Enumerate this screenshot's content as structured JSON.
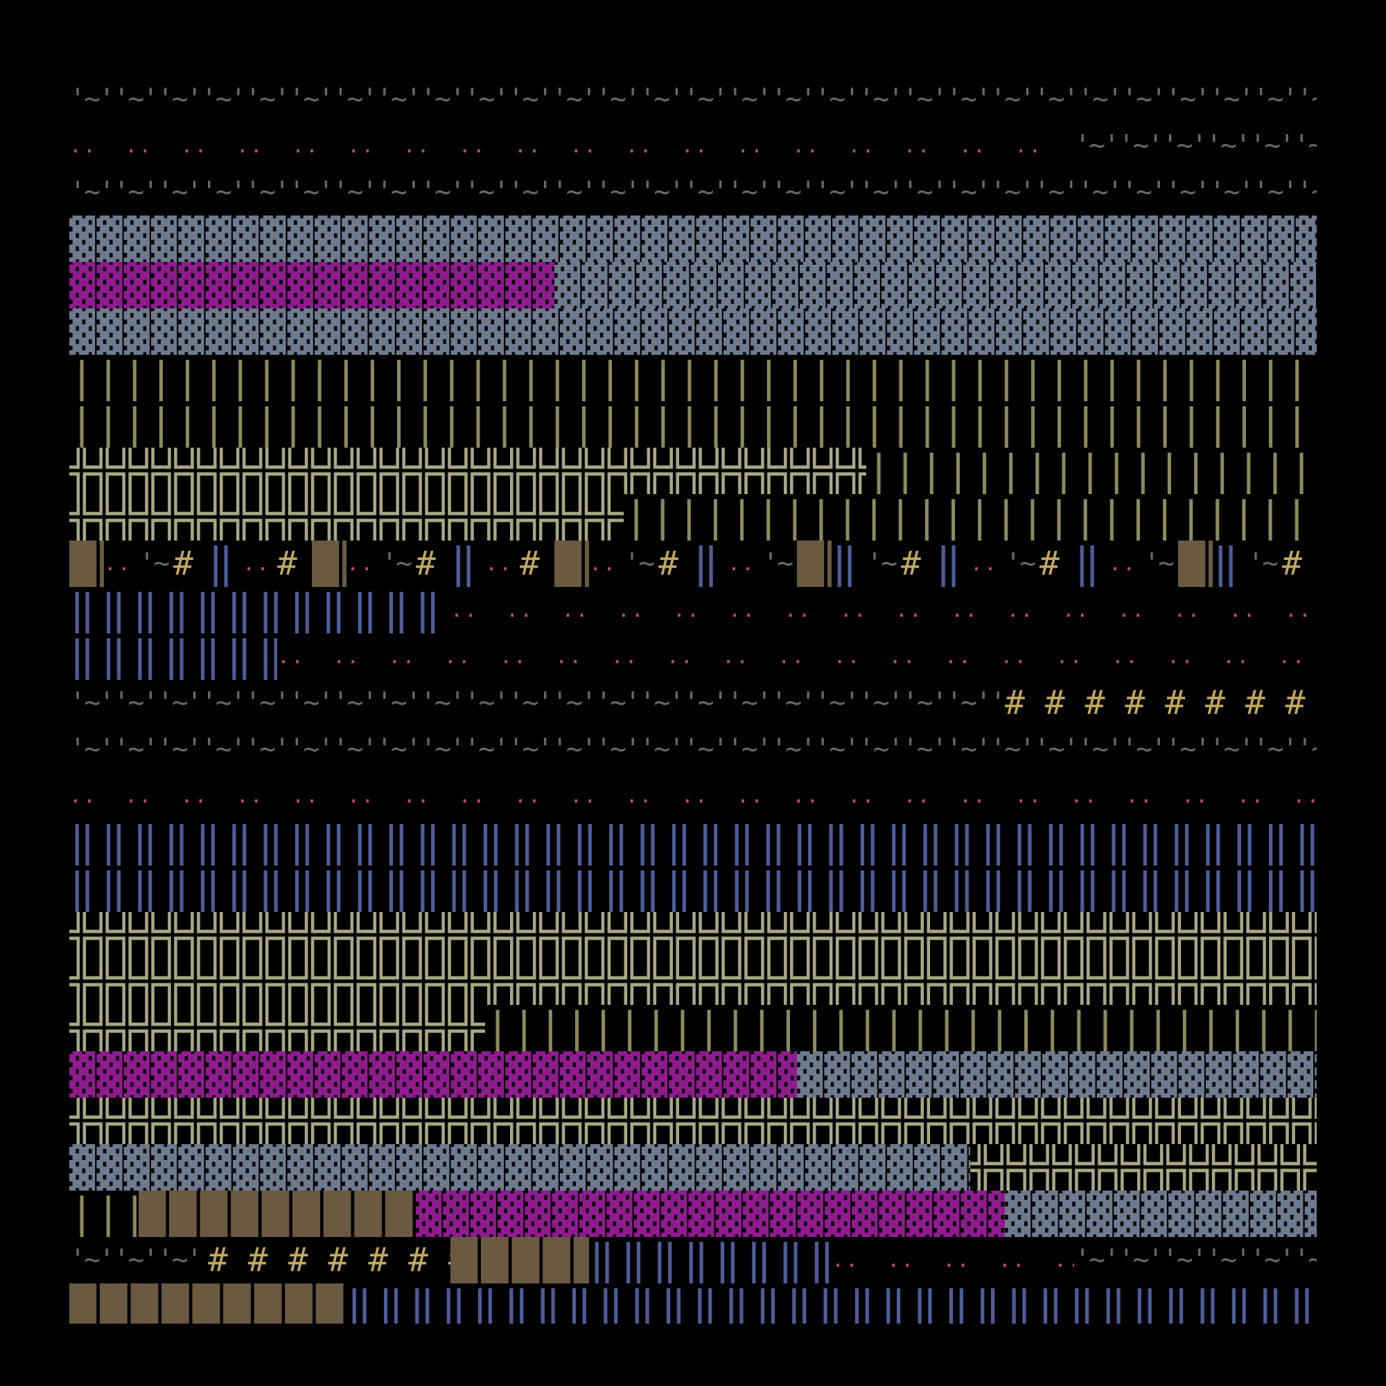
{
  "background": "#000000",
  "glyph_styles": {
    "wave": {
      "char": "'~'",
      "color": "#5f6b6b"
    },
    "dots": {
      "char": "..",
      "color": "#c2457f"
    },
    "dense": {
      "char": "▓",
      "color": "#6e7a8e"
    },
    "pink": {
      "char": "▓",
      "color": "#8f1b8f"
    },
    "bars": {
      "char": "|||",
      "color": "#8c8a5c"
    },
    "cross": {
      "char": "╬",
      "color": "#a7a784"
    },
    "block": {
      "char": "█",
      "color": "#6a5a42"
    },
    "hash": {
      "char": "#",
      "color": "#c2a85e"
    },
    "dbar": {
      "char": "‖",
      "color": "#4e5c9a"
    }
  },
  "rows": [
    {
      "segments": [
        {
          "style": "wave",
          "units": 36
        }
      ]
    },
    {
      "segments": [
        {
          "style": "dots",
          "units": 29
        },
        {
          "style": "wave",
          "units": 7
        }
      ]
    },
    {
      "segments": [
        {
          "style": "wave",
          "units": 36
        }
      ]
    },
    {
      "segments": [
        {
          "style": "dense",
          "units": 36
        }
      ]
    },
    {
      "segments": [
        {
          "style": "pink",
          "units": 14
        },
        {
          "style": "dense",
          "units": 22
        }
      ]
    },
    {
      "segments": [
        {
          "style": "dense",
          "units": 36
        }
      ]
    },
    {
      "segments": [
        {
          "style": "bars",
          "units": 36
        }
      ]
    },
    {
      "segments": [
        {
          "style": "bars",
          "units": 36
        }
      ]
    },
    {
      "segments": [
        {
          "style": "cross",
          "units": 23
        },
        {
          "style": "bars",
          "units": 13
        }
      ]
    },
    {
      "segments": [
        {
          "style": "cross",
          "units": 16
        },
        {
          "style": "bars",
          "units": 20
        }
      ]
    },
    {
      "segments": [
        {
          "style": "block",
          "units": 1
        },
        {
          "style": "dots",
          "units": 1
        },
        {
          "style": "wave",
          "units": 1
        },
        {
          "style": "hash",
          "units": 1
        },
        {
          "style": "dbar",
          "units": 1
        },
        {
          "style": "dots",
          "units": 1
        },
        {
          "style": "hash",
          "units": 1
        },
        {
          "style": "block",
          "units": 1
        },
        {
          "style": "dots",
          "units": 1
        },
        {
          "style": "wave",
          "units": 1
        },
        {
          "style": "hash",
          "units": 1
        },
        {
          "style": "dbar",
          "units": 1
        },
        {
          "style": "dots",
          "units": 1
        },
        {
          "style": "hash",
          "units": 1
        },
        {
          "style": "block",
          "units": 1
        },
        {
          "style": "dots",
          "units": 1
        },
        {
          "style": "wave",
          "units": 1
        },
        {
          "style": "hash",
          "units": 1
        },
        {
          "style": "dbar",
          "units": 1
        },
        {
          "style": "dots",
          "units": 1
        },
        {
          "style": "wave",
          "units": 1
        },
        {
          "style": "block",
          "units": 1
        },
        {
          "style": "dbar",
          "units": 1
        },
        {
          "style": "wave",
          "units": 1
        },
        {
          "style": "hash",
          "units": 1
        },
        {
          "style": "dbar",
          "units": 1
        },
        {
          "style": "dots",
          "units": 1
        },
        {
          "style": "wave",
          "units": 1
        },
        {
          "style": "hash",
          "units": 1
        },
        {
          "style": "dbar",
          "units": 1
        },
        {
          "style": "dots",
          "units": 1
        },
        {
          "style": "wave",
          "units": 1
        },
        {
          "style": "block",
          "units": 1
        },
        {
          "style": "dbar",
          "units": 1
        },
        {
          "style": "wave",
          "units": 1
        },
        {
          "style": "hash",
          "units": 1
        }
      ]
    },
    {
      "segments": [
        {
          "style": "dbar",
          "units": 11
        },
        {
          "style": "dots",
          "units": 25
        }
      ]
    },
    {
      "segments": [
        {
          "style": "dbar",
          "units": 6
        },
        {
          "style": "dots",
          "units": 30
        }
      ]
    },
    {
      "segments": [
        {
          "style": "wave",
          "units": 27
        },
        {
          "style": "hash",
          "units": 9
        }
      ]
    },
    {
      "segments": [
        {
          "style": "wave",
          "units": 36
        }
      ]
    },
    {
      "segments": [
        {
          "style": "dots",
          "units": 36
        }
      ]
    },
    {
      "segments": [
        {
          "style": "dbar",
          "units": 36
        }
      ]
    },
    {
      "segments": [
        {
          "style": "dbar",
          "units": 36
        }
      ]
    },
    {
      "segments": [
        {
          "style": "cross",
          "units": 36
        }
      ]
    },
    {
      "segments": [
        {
          "style": "cross",
          "units": 36
        }
      ]
    },
    {
      "segments": [
        {
          "style": "cross",
          "units": 12
        },
        {
          "style": "bars",
          "units": 24
        }
      ]
    },
    {
      "segments": [
        {
          "style": "pink",
          "units": 21
        },
        {
          "style": "dense",
          "units": 15
        }
      ]
    },
    {
      "segments": [
        {
          "style": "cross",
          "units": 36
        }
      ]
    },
    {
      "segments": [
        {
          "style": "dense",
          "units": 26
        },
        {
          "style": "cross",
          "units": 10
        }
      ]
    },
    {
      "segments": [
        {
          "style": "bars",
          "units": 2
        },
        {
          "style": "block",
          "units": 8
        },
        {
          "style": "pink",
          "units": 17
        },
        {
          "style": "dense",
          "units": 9
        }
      ]
    },
    {
      "segments": [
        {
          "style": "wave",
          "units": 4
        },
        {
          "style": "hash",
          "units": 7
        },
        {
          "style": "block",
          "units": 4
        },
        {
          "style": "dbar",
          "units": 7
        },
        {
          "style": "dots",
          "units": 7
        },
        {
          "style": "wave",
          "units": 7
        }
      ]
    },
    {
      "segments": [
        {
          "style": "block",
          "units": 8
        },
        {
          "style": "dbar",
          "units": 28
        }
      ]
    }
  ]
}
